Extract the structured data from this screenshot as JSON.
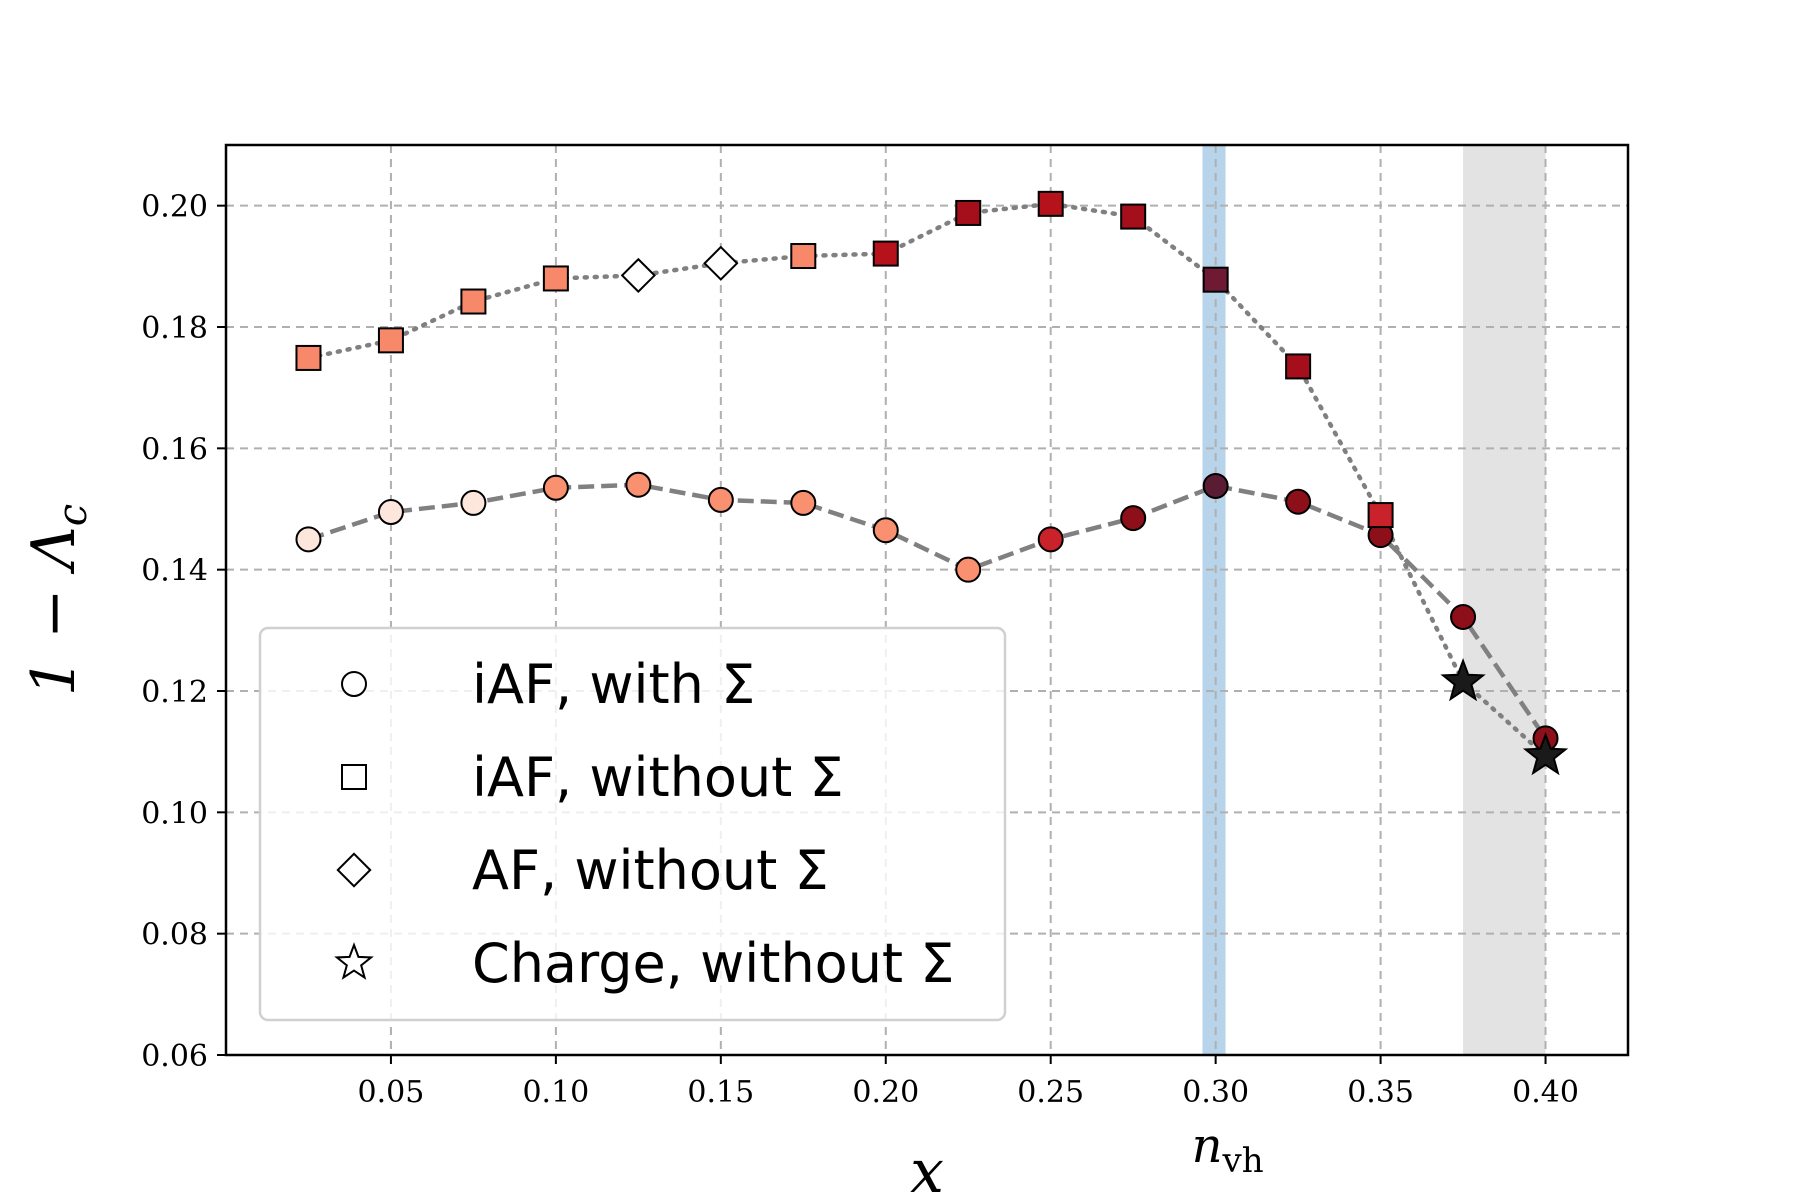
{
  "chart_data": {
    "type": "scatter",
    "title": "",
    "xlabel": "x",
    "ylabel": "1 − Λc",
    "ylabel_main": "1 − Λ",
    "ylabel_sub": "c",
    "xlim": [
      0.0,
      0.425
    ],
    "ylim": [
      0.06,
      0.21
    ],
    "grid": true,
    "legend_position": "lower-left",
    "x_ticks": [
      0.05,
      0.1,
      0.15,
      0.2,
      0.25,
      0.3,
      0.35,
      0.4
    ],
    "x_tick_labels": [
      "0.05",
      "0.10",
      "0.15",
      "0.20",
      "0.25",
      "0.30",
      "0.35",
      "0.40"
    ],
    "y_ticks": [
      0.06,
      0.08,
      0.1,
      0.12,
      0.14,
      0.16,
      0.18,
      0.2
    ],
    "y_tick_labels": [
      "0.06",
      "0.08",
      "0.10",
      "0.12",
      "0.14",
      "0.16",
      "0.18",
      "0.20"
    ],
    "annotation_nvh": {
      "main": "n",
      "sub": "vh",
      "x": 0.3
    },
    "shaded_regions": [
      {
        "x0": 0.296,
        "x1": 0.303,
        "color": "#b8d4ea"
      },
      {
        "x0": 0.375,
        "x1": 0.4,
        "color": "#e3e3e3"
      }
    ],
    "legend_entries": [
      {
        "marker": "circle",
        "label": "iAF, with Σ"
      },
      {
        "marker": "square",
        "label": "iAF, without Σ"
      },
      {
        "marker": "diamond",
        "label": "AF, without Σ"
      },
      {
        "marker": "star",
        "label": "Charge, without Σ"
      }
    ],
    "series": [
      {
        "name": "iAF, with Σ",
        "marker": "circle",
        "line": "dashed",
        "x": [
          0.025,
          0.05,
          0.075,
          0.1,
          0.125,
          0.15,
          0.175,
          0.2,
          0.225,
          0.25,
          0.275,
          0.3,
          0.325,
          0.35,
          0.375,
          0.4
        ],
        "y": [
          0.145,
          0.1495,
          0.151,
          0.1535,
          0.154,
          0.1515,
          0.151,
          0.1465,
          0.14,
          0.145,
          0.1485,
          0.1538,
          0.1512,
          0.1457,
          0.1322,
          0.1122
        ],
        "colors": [
          "#fde6dc",
          "#fde6dc",
          "#fde6dc",
          "#f99070",
          "#f99070",
          "#f99070",
          "#f99070",
          "#f99070",
          "#f99070",
          "#c9222a",
          "#8c0f1a",
          "#5a1c33",
          "#8c0f1a",
          "#8c0f1a",
          "#8c0f1a",
          "#8c0f1a"
        ]
      },
      {
        "name": "iAF, without Σ",
        "marker": "square",
        "line": "dotted",
        "x": [
          0.025,
          0.05,
          0.075,
          0.1,
          0.175,
          0.2,
          0.225,
          0.25,
          0.275,
          0.3,
          0.325,
          0.35
        ],
        "y": [
          0.1749,
          0.1778,
          0.1842,
          0.188,
          0.1917,
          0.1921,
          0.1988,
          0.2003,
          0.1982,
          0.1878,
          0.1735,
          0.149
        ],
        "colors": [
          "#f7896a",
          "#f7896a",
          "#f7896a",
          "#f7896a",
          "#f7896a",
          "#b5121b",
          "#a50f1b",
          "#b5121b",
          "#a50f1b",
          "#6e1a35",
          "#a50f1b",
          "#c9222a"
        ]
      },
      {
        "name": "AF, without Σ",
        "marker": "diamond",
        "line": "dotted",
        "x": [
          0.125,
          0.15
        ],
        "y": [
          0.1885,
          0.1905
        ],
        "colors": [
          "#ffffff",
          "#ffffff"
        ]
      },
      {
        "name": "Charge, without Σ",
        "marker": "star",
        "line": "dotted",
        "x": [
          0.375,
          0.4
        ],
        "y": [
          0.1215,
          0.1093
        ],
        "colors": [
          "#1a1a1a",
          "#1a1a1a"
        ]
      }
    ]
  }
}
